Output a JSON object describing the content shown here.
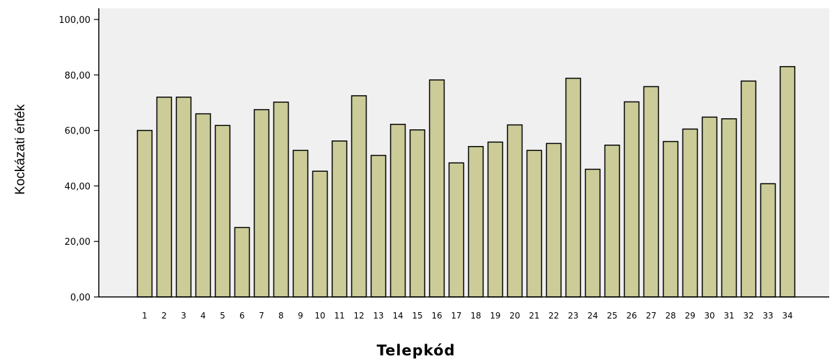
{
  "chart_data": {
    "type": "bar",
    "xlabel": "Telepkód",
    "ylabel": "Kockázati érték",
    "ylim": [
      0,
      100
    ],
    "yticks": [
      "0,00",
      "20,00",
      "40,00",
      "60,00",
      "80,00",
      "100,00"
    ],
    "grid": false,
    "categories": [
      "1",
      "2",
      "3",
      "4",
      "5",
      "6",
      "7",
      "8",
      "9",
      "10",
      "11",
      "12",
      "13",
      "14",
      "15",
      "16",
      "17",
      "18",
      "19",
      "20",
      "21",
      "22",
      "23",
      "24",
      "25",
      "26",
      "27",
      "28",
      "29",
      "30",
      "31",
      "32",
      "33",
      "34"
    ],
    "values": [
      60.0,
      72.0,
      72.0,
      66.0,
      61.8,
      25.0,
      67.5,
      70.2,
      52.8,
      45.3,
      56.2,
      72.5,
      51.0,
      62.2,
      60.2,
      78.2,
      48.3,
      54.2,
      55.8,
      62.0,
      52.8,
      55.3,
      78.8,
      46.0,
      54.7,
      70.3,
      75.8,
      56.0,
      60.5,
      64.8,
      64.2,
      77.8,
      40.8,
      83.0
    ],
    "colors": {
      "bar_fill": "#cccc99",
      "bar_stroke": "#000000",
      "plot_background": "#f0f0f0"
    }
  }
}
